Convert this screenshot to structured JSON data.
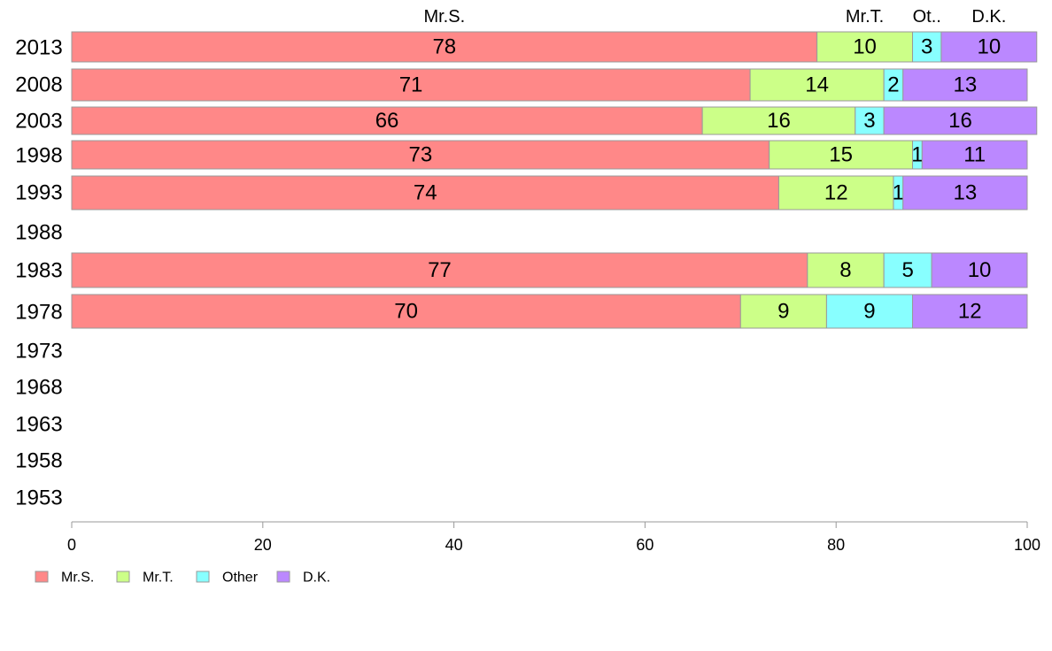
{
  "chart_data": {
    "type": "bar",
    "orientation": "horizontal",
    "stacked": true,
    "categories": [
      "2013",
      "2008",
      "2003",
      "1998",
      "1993",
      "1988",
      "1983",
      "1978",
      "1973",
      "1968",
      "1963",
      "1958",
      "1953"
    ],
    "series": [
      {
        "name": "Mr.S.",
        "top_label": "Mr.S.",
        "color": "#ff8888",
        "values": [
          78,
          71,
          66,
          73,
          74,
          null,
          77,
          70,
          null,
          null,
          null,
          null,
          null
        ]
      },
      {
        "name": "Mr.T.",
        "top_label": "Mr.T.",
        "color": "#ccff88",
        "values": [
          10,
          14,
          16,
          15,
          12,
          null,
          8,
          9,
          null,
          null,
          null,
          null,
          null
        ]
      },
      {
        "name": "Other",
        "top_label": "Ot..",
        "color": "#88ffff",
        "values": [
          3,
          2,
          3,
          1,
          1,
          null,
          5,
          9,
          null,
          null,
          null,
          null,
          null
        ]
      },
      {
        "name": "D.K.",
        "top_label": "D.K.",
        "color": "#bb88ff",
        "values": [
          10,
          13,
          16,
          11,
          13,
          null,
          10,
          12,
          null,
          null,
          null,
          null,
          null
        ]
      }
    ],
    "xlim": [
      0,
      100
    ],
    "xticks": [
      0,
      20,
      40,
      60,
      80,
      100
    ],
    "legend_position": "bottom-left",
    "grid": false
  }
}
